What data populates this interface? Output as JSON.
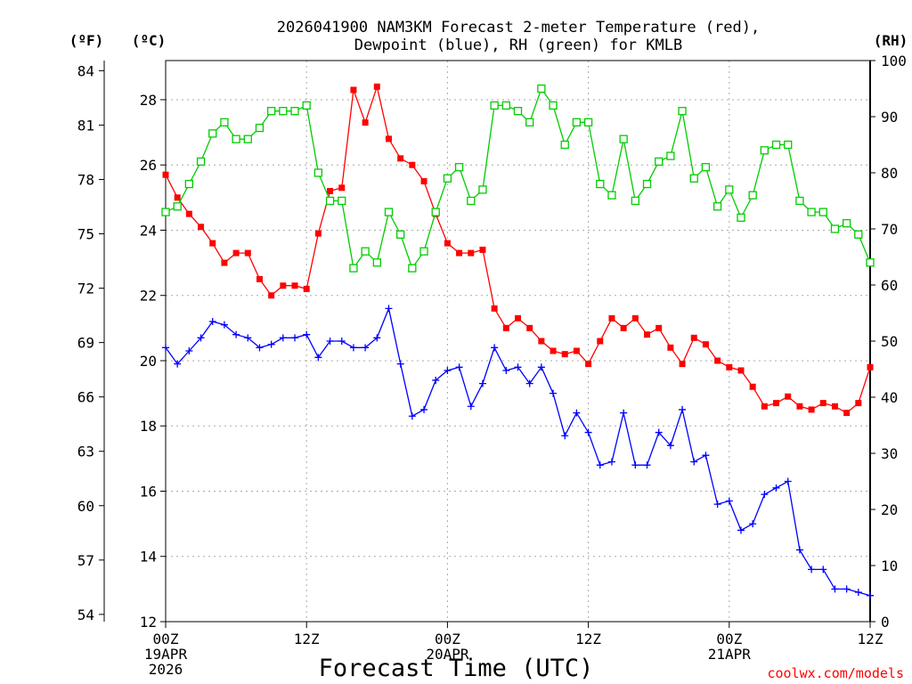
{
  "header": {
    "title_line1": "2026041900 NAM3KM Forecast 2-meter Temperature (red),",
    "title_line2": "Dewpoint (blue), RH (green) for KMLB"
  },
  "units": {
    "fahrenheit": "(ºF)",
    "celsius": "(ºC)",
    "rh": "(RH)"
  },
  "x_axis": {
    "label": "Forecast Time (UTC)",
    "ticks": [
      {
        "hour": 0,
        "lines": [
          "00Z",
          "19APR",
          "2026"
        ]
      },
      {
        "hour": 12,
        "lines": [
          "12Z"
        ]
      },
      {
        "hour": 24,
        "lines": [
          "00Z",
          "20APR"
        ]
      },
      {
        "hour": 36,
        "lines": [
          "12Z"
        ]
      },
      {
        "hour": 48,
        "lines": [
          "00Z",
          "21APR"
        ]
      },
      {
        "hour": 60,
        "lines": [
          "12Z"
        ]
      }
    ]
  },
  "credit": "coolwx.com/models",
  "colors": {
    "temperature": "#ff0000",
    "dewpoint": "#0000ff",
    "rh": "#00cc00",
    "grid": "#aaaaaa"
  },
  "chart_data": {
    "type": "line",
    "title": "2026041900 NAM3KM Forecast 2-meter Temperature (red), Dewpoint (blue), RH (green) for KMLB",
    "xlabel": "Forecast Time (UTC)",
    "x_unit": "forecast hour",
    "xlim": [
      0,
      60
    ],
    "left_axis_c": {
      "label": "(ºC)",
      "lim": [
        12,
        29.2
      ],
      "ticks": [
        12,
        14,
        16,
        18,
        20,
        22,
        24,
        26,
        28
      ]
    },
    "left_axis_f": {
      "label": "(ºF)",
      "ticks": [
        54,
        57,
        60,
        63,
        66,
        69,
        72,
        75,
        78,
        81,
        84
      ]
    },
    "right_axis": {
      "label": "(RH)",
      "lim": [
        0,
        100
      ],
      "ticks": [
        0,
        10,
        20,
        30,
        40,
        50,
        60,
        70,
        80,
        90,
        100
      ]
    },
    "x": [
      0,
      1,
      2,
      3,
      4,
      5,
      6,
      7,
      8,
      9,
      10,
      11,
      12,
      13,
      14,
      15,
      16,
      17,
      18,
      19,
      20,
      21,
      22,
      23,
      24,
      25,
      26,
      27,
      28,
      29,
      30,
      31,
      32,
      33,
      34,
      35,
      36,
      37,
      38,
      39,
      40,
      41,
      42,
      43,
      44,
      45,
      46,
      47,
      48,
      49,
      50,
      51,
      52,
      53,
      54,
      55,
      56,
      57,
      58,
      59,
      60
    ],
    "series": [
      {
        "name": "Temperature (ºC)",
        "axis": "celsius",
        "marker": "filled-square",
        "values": [
          25.7,
          25.0,
          24.5,
          24.1,
          23.6,
          23.0,
          23.3,
          23.3,
          22.5,
          22.0,
          22.3,
          22.3,
          22.2,
          23.9,
          25.2,
          25.3,
          28.3,
          27.3,
          28.4,
          26.8,
          26.2,
          26.0,
          25.5,
          24.5,
          23.6,
          23.3,
          23.3,
          23.4,
          21.6,
          21.0,
          21.3,
          21.0,
          20.6,
          20.3,
          20.2,
          20.3,
          19.9,
          20.6,
          21.3,
          21.0,
          21.3,
          20.8,
          21.0,
          20.4,
          19.9,
          20.7,
          20.5,
          20.0,
          19.8,
          19.7,
          19.2,
          18.6,
          18.7,
          18.9,
          18.6,
          18.5,
          18.7,
          18.6,
          18.4,
          18.7,
          19.8
        ]
      },
      {
        "name": "Dewpoint (ºC)",
        "axis": "celsius",
        "marker": "plus",
        "values": [
          20.4,
          19.9,
          20.3,
          20.7,
          21.2,
          21.1,
          20.8,
          20.7,
          20.4,
          20.5,
          20.7,
          20.7,
          20.8,
          20.1,
          20.6,
          20.6,
          20.4,
          20.4,
          20.7,
          21.6,
          19.9,
          18.3,
          18.5,
          19.4,
          19.7,
          19.8,
          18.6,
          19.3,
          20.4,
          19.7,
          19.8,
          19.3,
          19.8,
          19.0,
          17.7,
          18.4,
          17.8,
          16.8,
          16.9,
          18.4,
          16.8,
          16.8,
          17.8,
          17.4,
          18.5,
          16.9,
          17.1,
          15.6,
          15.7,
          14.8,
          15.0,
          15.9,
          16.1,
          16.3,
          14.2,
          13.6,
          13.6,
          13.0,
          13.0,
          12.9,
          12.8
        ]
      },
      {
        "name": "RH (%)",
        "axis": "rh",
        "marker": "open-square",
        "values": [
          73,
          74,
          78,
          82,
          87,
          89,
          86,
          86,
          88,
          91,
          91,
          91,
          92,
          80,
          75,
          75,
          63,
          66,
          64,
          73,
          69,
          63,
          66,
          73,
          79,
          81,
          75,
          77,
          92,
          92,
          91,
          89,
          95,
          92,
          85,
          89,
          89,
          78,
          76,
          86,
          75,
          78,
          82,
          83,
          91,
          79,
          81,
          74,
          77,
          72,
          76,
          84,
          85,
          85,
          75,
          73,
          73,
          70,
          71,
          69,
          64
        ]
      }
    ]
  }
}
